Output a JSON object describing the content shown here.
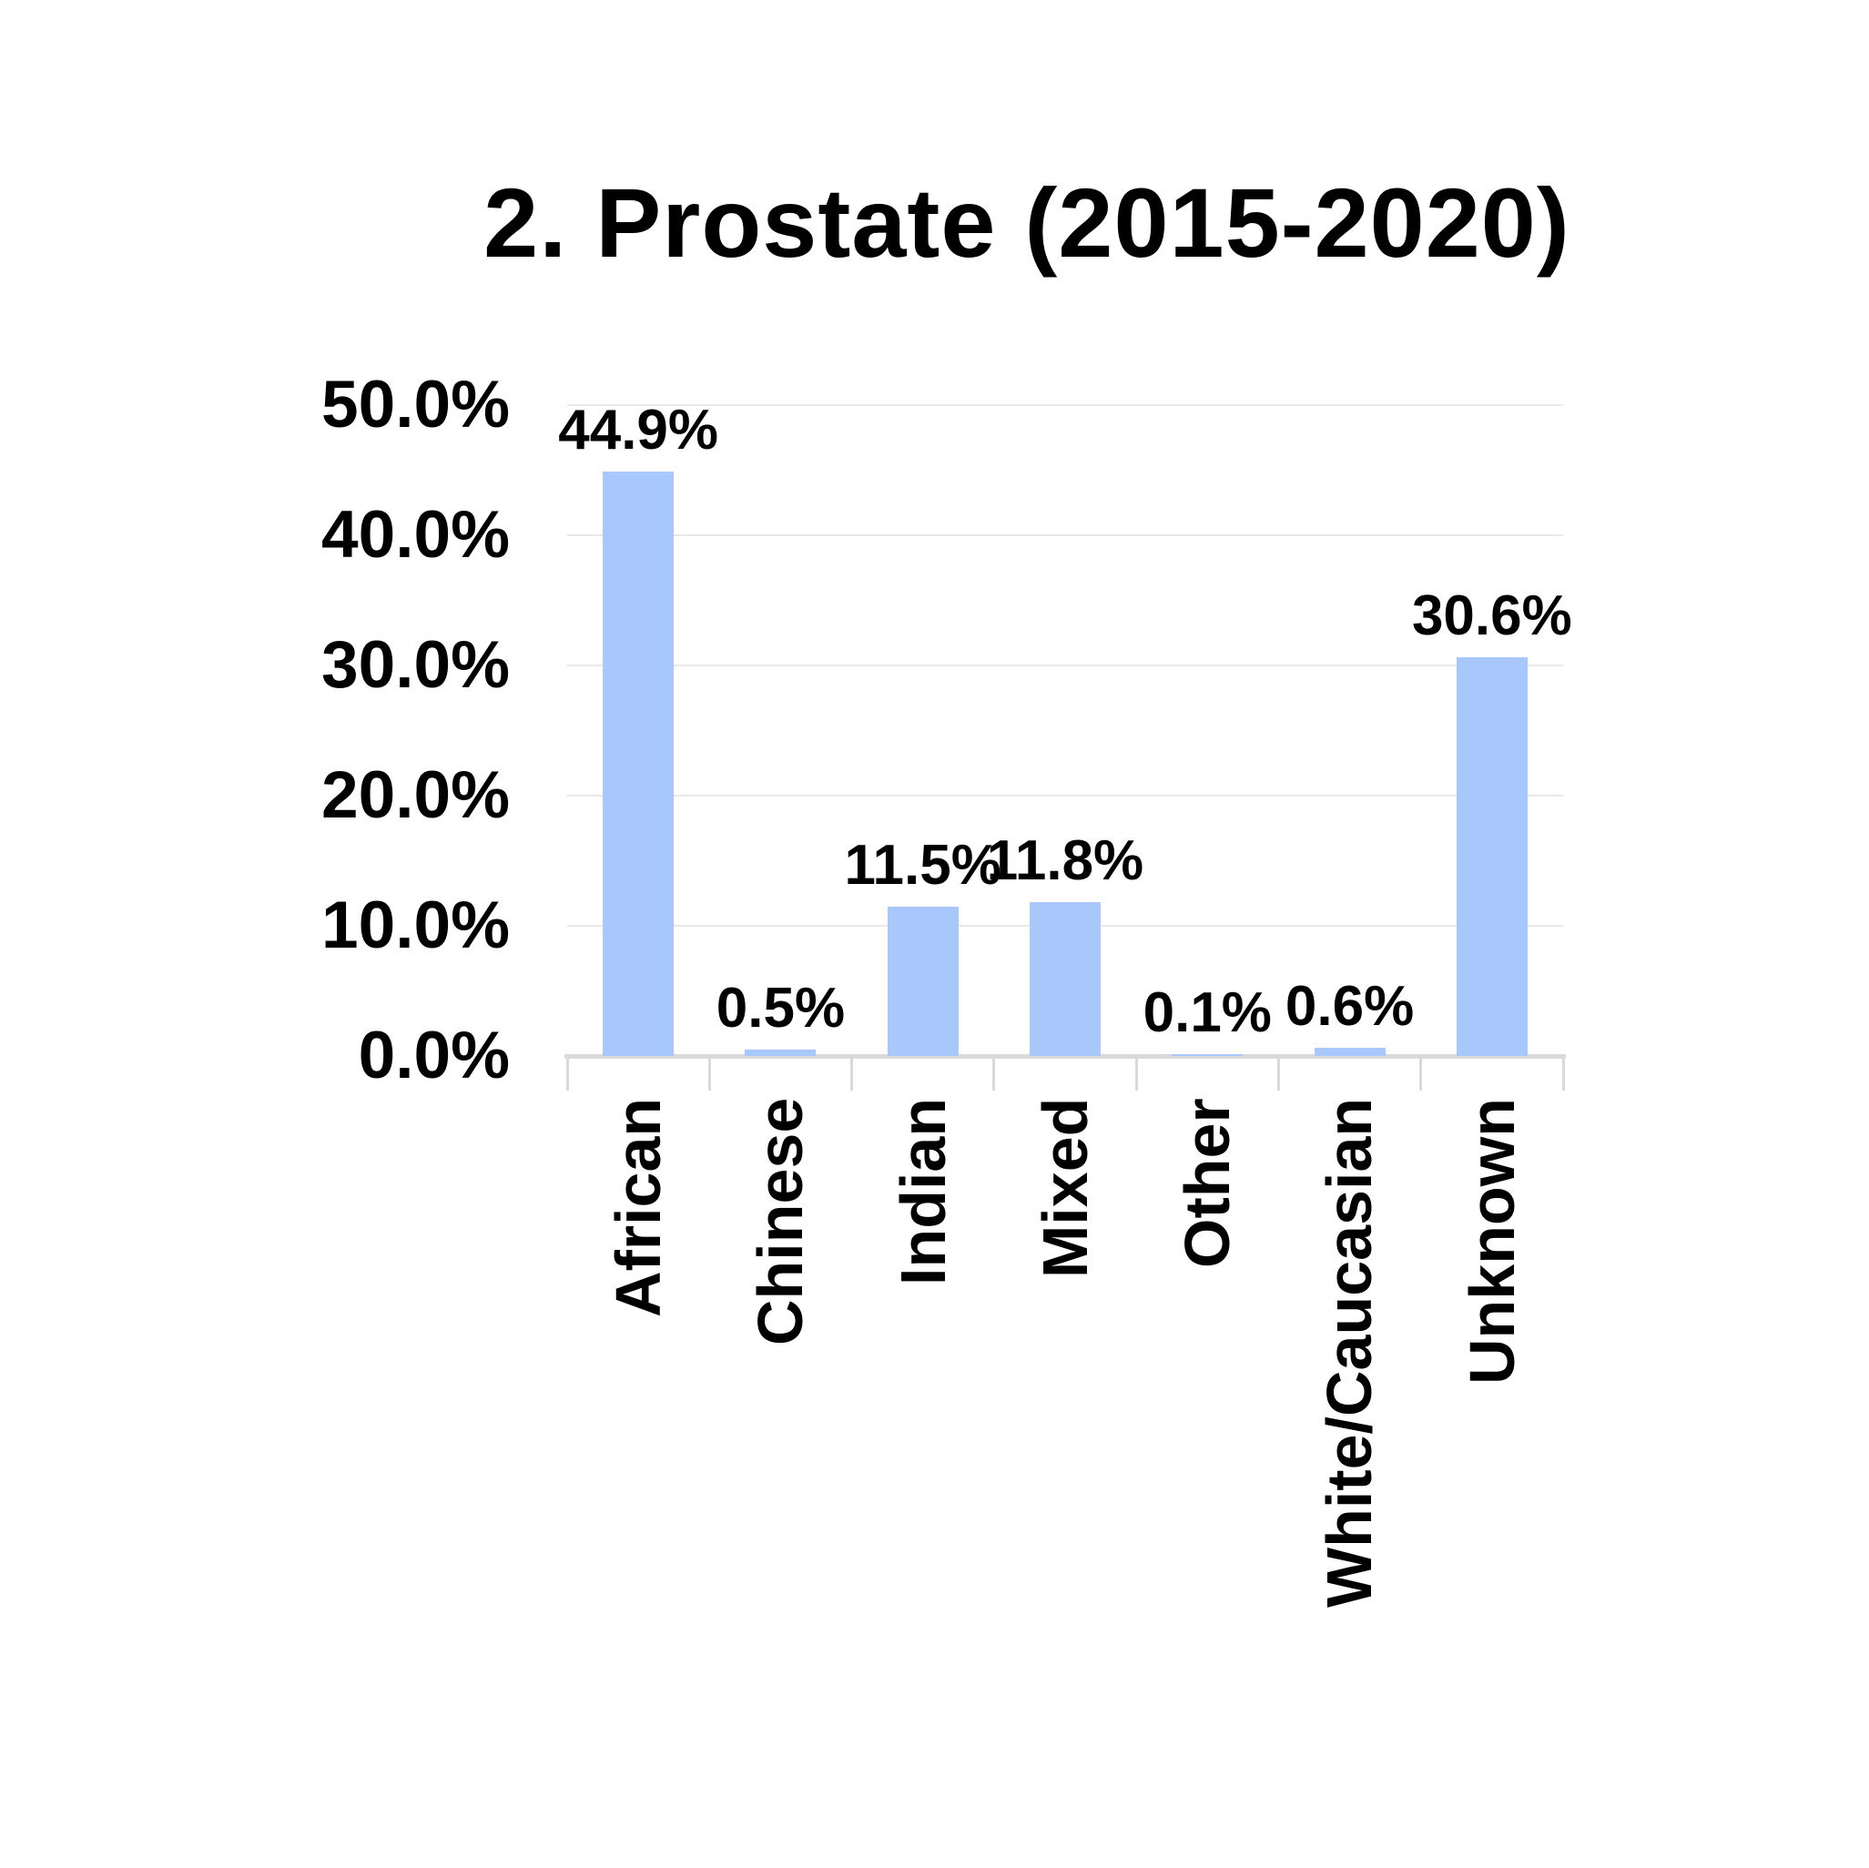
{
  "title": "2. Prostate (2015-2020)",
  "chart_data": {
    "type": "bar",
    "title": "2. Prostate (2015-2020)",
    "categories": [
      "African",
      "Chinese",
      "Indian",
      "Mixed",
      "Other",
      "White/Caucasian",
      "Unknown"
    ],
    "values": [
      44.9,
      0.5,
      11.5,
      11.8,
      0.1,
      0.6,
      30.6
    ],
    "data_labels": [
      "44.9%",
      "0.5%",
      "11.5%",
      "11.8%",
      "0.1%",
      "0.6%",
      "30.6%"
    ],
    "y_ticks": [
      "50.0%",
      "40.0%",
      "30.0%",
      "20.0%",
      "10.0%",
      "0.0%"
    ],
    "ylim": [
      0,
      50
    ],
    "xlabel": "",
    "ylabel": "",
    "grid": "horizontal",
    "legend": "none",
    "bar_color": "#A8C7FA",
    "gridline_color": "#E8E8E8",
    "axis_color": "#D9D9D9",
    "text_color": "#000000",
    "background_color": "#FFFFFF"
  }
}
